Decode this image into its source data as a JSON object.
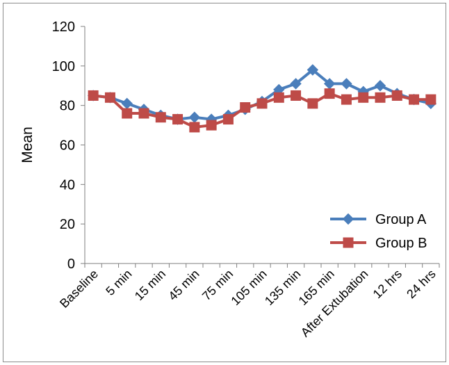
{
  "chart_data": {
    "type": "line",
    "title": "",
    "xlabel": "",
    "ylabel": "Mean",
    "ylim": [
      0,
      120
    ],
    "yticks": [
      0,
      20,
      40,
      60,
      80,
      100,
      120
    ],
    "grid": false,
    "legend_position": "lower-right",
    "categories": [
      "Baseline",
      "",
      "5 min",
      "",
      "15 min",
      "",
      "45 min",
      "",
      "75 min",
      "",
      "105 min",
      "",
      "135 min",
      "",
      "165 min",
      "",
      "After Extubation",
      "",
      "12 hrs",
      "",
      "24 hrs"
    ],
    "series": [
      {
        "name": "Group A",
        "color": "#4a7ebb",
        "marker": "diamond",
        "values": [
          85,
          84,
          81,
          78,
          75,
          73,
          74,
          73,
          75,
          78,
          82,
          88,
          91,
          98,
          91,
          91,
          87,
          90,
          86,
          83,
          81
        ]
      },
      {
        "name": "Group B",
        "color": "#be4b48",
        "marker": "square",
        "values": [
          85,
          84,
          76,
          76,
          74,
          73,
          69,
          70,
          73,
          79,
          81,
          84,
          85,
          81,
          86,
          83,
          84,
          84,
          85,
          83,
          83
        ]
      }
    ]
  }
}
